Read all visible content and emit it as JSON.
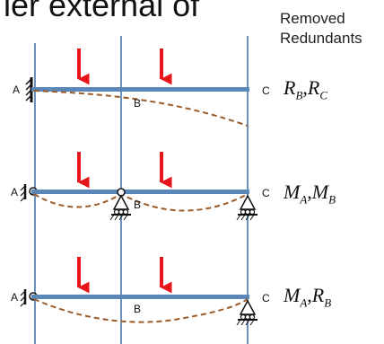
{
  "title_fragment": "ier external of",
  "header": {
    "line1": "Removed",
    "line2": "Redundants"
  },
  "point_labels": {
    "a": "A",
    "b": "B",
    "c": "C"
  },
  "colors": {
    "beam": "#5b87b8",
    "grid": "#3f6fa8",
    "load": "#e8141c",
    "deflection": "#9a5b2a",
    "support": "#111111"
  },
  "cases": [
    {
      "name": "fixed-A",
      "redundant_1": {
        "sym": "R",
        "sub": "B"
      },
      "redundant_2": {
        "sym": "R",
        "sub": "C"
      }
    },
    {
      "name": "pinned-A-rollers-B-C",
      "redundant_1": {
        "sym": "M",
        "sub": "A"
      },
      "redundant_2": {
        "sym": "M",
        "sub": "B"
      }
    },
    {
      "name": "pinned-A-roller-C",
      "redundant_1": {
        "sym": "M",
        "sub": "A"
      },
      "redundant_2": {
        "sym": "R",
        "sub": "B"
      }
    }
  ]
}
